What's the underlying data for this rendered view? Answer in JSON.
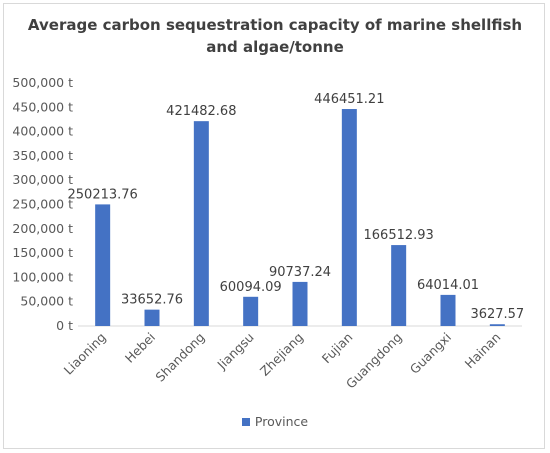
{
  "chart_data": {
    "type": "bar",
    "title": [
      "Average carbon sequestration capacity of marine shellfish",
      "and algae/tonne"
    ],
    "categories": [
      "Liaoning",
      "Hebei",
      "Shandong",
      "Jiangsu",
      "Zhejiang",
      "Fujian",
      "Guangdong",
      "Guangxi",
      "Hainan"
    ],
    "series": [
      {
        "name": "Province",
        "values": [
          250213.76,
          33652.76,
          421482.68,
          60094.09,
          90737.24,
          446451.21,
          166512.93,
          64014.01,
          3627.57
        ],
        "data_labels": [
          "250213.76",
          "33652.76",
          "421482.68",
          "60094.09",
          "90737.24",
          "446451.21",
          "166512.93",
          "64014.01",
          "3627.57"
        ]
      }
    ],
    "ylim": [
      0,
      500000
    ],
    "yticks": [
      0,
      50000,
      100000,
      150000,
      200000,
      250000,
      300000,
      350000,
      400000,
      450000,
      500000
    ],
    "ytick_labels": [
      "0 t",
      "50,000 t",
      "100,000 t",
      "150,000 t",
      "200,000 t",
      "250,000 t",
      "300,000 t",
      "350,000 t",
      "400,000 t",
      "450,000 t",
      "500,000 t"
    ],
    "xlabel": "",
    "ylabel": "",
    "grid": false,
    "legend": "bottom",
    "colors": {
      "bar": "#4472c4",
      "text": "#595959",
      "axis": "#d9d9d9"
    }
  }
}
